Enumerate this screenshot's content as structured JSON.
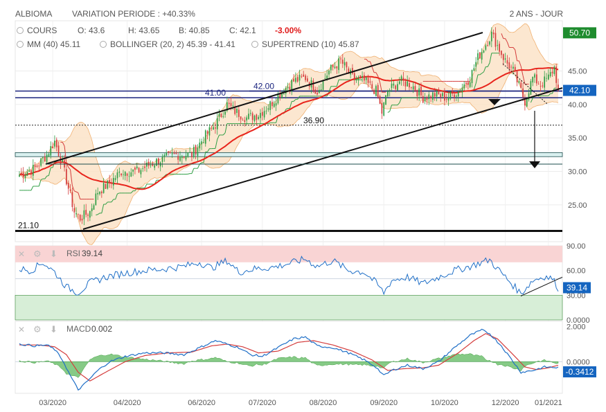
{
  "header": {
    "ticker": "ALBIOMA",
    "variation": "VARIATION PERIODE : +40.33%",
    "range": "2 ANS - JOUR"
  },
  "legend": {
    "cours_label": "COURS",
    "open": "O: 43.6",
    "high": "H: 43.65",
    "low": "B: 40.85",
    "close": "C: 42.1",
    "change": "-3.00%",
    "mm": "MM (40)",
    "mm_value": "45.11",
    "bollinger": "BOLLINGER (20, 2)",
    "bollinger_value": "45.39 - 41.41",
    "supertrend": "SUPERTREND (10)",
    "supertrend_value": "45.87"
  },
  "colors": {
    "up": "#2e9e44",
    "down": "#d43c3c",
    "mm": "#e8241c",
    "bollinger_fill": "#fbe3c8",
    "bollinger_line": "#f0b070",
    "supertrend_up": "#2e9e44",
    "supertrend_down": "#d43c3c",
    "hline": "#1a237e",
    "rsi": "#1f6fc7",
    "rsi_over": "#f9d4d4",
    "rsi_under": "#d7eed7",
    "macd": "#1f6fc7",
    "macd_signal": "#d43c3c",
    "hist": "#5db85d",
    "last_price_bg": "#1565c0",
    "high_tag_bg": "#1e8c2e"
  },
  "chart_data": [
    {
      "type": "candlestick",
      "x_ticks": [
        "03/2020",
        "04/2020",
        "06/2020",
        "07/2020",
        "08/2020",
        "09/2020",
        "10/2020",
        "12/2020",
        "01/2021"
      ],
      "y_ticks": [
        "25.00",
        "30.00",
        "35.00",
        "40.00",
        "45.00"
      ],
      "ylim": [
        19.5,
        52.5
      ],
      "anchors": [
        [
          0,
          29.5
        ],
        [
          8,
          30.5
        ],
        [
          14,
          32.5
        ],
        [
          18,
          34.5
        ],
        [
          22,
          31
        ],
        [
          25,
          27.5
        ],
        [
          28,
          24
        ],
        [
          31,
          23
        ],
        [
          36,
          24
        ],
        [
          40,
          27
        ],
        [
          45,
          28
        ],
        [
          52,
          30
        ],
        [
          60,
          30
        ],
        [
          70,
          31.5
        ],
        [
          80,
          32.5
        ],
        [
          88,
          32.5
        ],
        [
          94,
          35
        ],
        [
          100,
          37
        ],
        [
          106,
          40
        ],
        [
          110,
          39
        ],
        [
          116,
          38
        ],
        [
          122,
          38.5
        ],
        [
          128,
          40
        ],
        [
          134,
          42
        ],
        [
          140,
          43.5
        ],
        [
          146,
          44
        ],
        [
          152,
          42
        ],
        [
          158,
          45
        ],
        [
          164,
          46.5
        ],
        [
          170,
          44
        ],
        [
          176,
          43.5
        ],
        [
          182,
          42
        ],
        [
          185,
          38.8
        ],
        [
          188,
          42
        ],
        [
          194,
          43.5
        ],
        [
          200,
          43
        ],
        [
          206,
          41
        ],
        [
          212,
          41.5
        ],
        [
          218,
          41
        ],
        [
          224,
          42
        ],
        [
          230,
          44
        ],
        [
          234,
          47
        ],
        [
          238,
          49
        ],
        [
          241,
          50.5
        ],
        [
          244,
          48.8
        ],
        [
          248,
          46.5
        ],
        [
          252,
          45
        ],
        [
          256,
          42
        ],
        [
          258,
          40.5
        ],
        [
          262,
          44
        ],
        [
          266,
          43
        ],
        [
          270,
          44
        ],
        [
          273,
          45.5
        ],
        [
          275,
          42.1
        ]
      ],
      "last_price": "42.10",
      "high_tag": "50.70"
    },
    {
      "type": "line",
      "name": "RSI",
      "value_label": "39.14",
      "y_ticks": [
        "90.00",
        "60.00",
        "30.00",
        "0.0000"
      ],
      "ylim": [
        0,
        90
      ],
      "zones": {
        "overbought": 70,
        "oversold": 30
      },
      "anchors": [
        [
          0,
          62
        ],
        [
          6,
          60
        ],
        [
          12,
          70
        ],
        [
          18,
          58
        ],
        [
          24,
          40
        ],
        [
          30,
          33
        ],
        [
          36,
          45
        ],
        [
          44,
          52
        ],
        [
          54,
          57
        ],
        [
          64,
          60
        ],
        [
          74,
          62
        ],
        [
          84,
          65
        ],
        [
          92,
          70
        ],
        [
          98,
          63
        ],
        [
          106,
          72
        ],
        [
          112,
          58
        ],
        [
          120,
          62
        ],
        [
          130,
          64
        ],
        [
          140,
          70
        ],
        [
          146,
          74
        ],
        [
          152,
          65
        ],
        [
          160,
          72
        ],
        [
          168,
          60
        ],
        [
          176,
          58
        ],
        [
          182,
          45
        ],
        [
          186,
          33
        ],
        [
          190,
          48
        ],
        [
          198,
          52
        ],
        [
          206,
          44
        ],
        [
          214,
          52
        ],
        [
          222,
          60
        ],
        [
          230,
          65
        ],
        [
          236,
          70
        ],
        [
          240,
          73
        ],
        [
          246,
          57
        ],
        [
          252,
          42
        ],
        [
          256,
          32
        ],
        [
          262,
          48
        ],
        [
          268,
          53
        ],
        [
          272,
          50
        ],
        [
          275,
          39
        ]
      ]
    },
    {
      "type": "line",
      "name": "MACD",
      "value_label": "0.002",
      "last_tag": "-0.3412",
      "y_ticks": [
        "2.000",
        "0.0000"
      ],
      "ylim": [
        -1.8,
        2.3
      ],
      "macd_anchors": [
        [
          0,
          1.0
        ],
        [
          8,
          0.9
        ],
        [
          14,
          0.95
        ],
        [
          18,
          0.7
        ],
        [
          22,
          0.1
        ],
        [
          26,
          -0.8
        ],
        [
          30,
          -1.6
        ],
        [
          34,
          -1.2
        ],
        [
          40,
          -0.5
        ],
        [
          46,
          0.0
        ],
        [
          54,
          0.3
        ],
        [
          64,
          0.5
        ],
        [
          74,
          0.5
        ],
        [
          84,
          0.4
        ],
        [
          92,
          0.8
        ],
        [
          100,
          1.2
        ],
        [
          106,
          1.0
        ],
        [
          112,
          0.8
        ],
        [
          118,
          0.4
        ],
        [
          124,
          0.3
        ],
        [
          132,
          0.8
        ],
        [
          140,
          1.3
        ],
        [
          146,
          1.4
        ],
        [
          152,
          0.9
        ],
        [
          160,
          0.8
        ],
        [
          168,
          0.5
        ],
        [
          176,
          0.1
        ],
        [
          182,
          -0.3
        ],
        [
          186,
          -0.8
        ],
        [
          190,
          -0.5
        ],
        [
          198,
          -0.2
        ],
        [
          206,
          -0.4
        ],
        [
          214,
          0.0
        ],
        [
          222,
          0.8
        ],
        [
          230,
          1.5
        ],
        [
          236,
          1.8
        ],
        [
          240,
          1.6
        ],
        [
          246,
          0.9
        ],
        [
          252,
          0.0
        ],
        [
          256,
          -0.6
        ],
        [
          262,
          -0.5
        ],
        [
          268,
          -0.3
        ],
        [
          275,
          -0.34
        ]
      ],
      "signal_anchors": [
        [
          0,
          0.95
        ],
        [
          10,
          0.95
        ],
        [
          18,
          0.85
        ],
        [
          24,
          0.4
        ],
        [
          30,
          -0.6
        ],
        [
          36,
          -1.1
        ],
        [
          44,
          -0.6
        ],
        [
          54,
          0.0
        ],
        [
          64,
          0.35
        ],
        [
          76,
          0.5
        ],
        [
          88,
          0.55
        ],
        [
          98,
          0.9
        ],
        [
          106,
          1.0
        ],
        [
          114,
          0.85
        ],
        [
          122,
          0.5
        ],
        [
          132,
          0.6
        ],
        [
          142,
          1.1
        ],
        [
          150,
          1.2
        ],
        [
          160,
          0.95
        ],
        [
          170,
          0.6
        ],
        [
          180,
          0.1
        ],
        [
          188,
          -0.5
        ],
        [
          196,
          -0.4
        ],
        [
          206,
          -0.35
        ],
        [
          214,
          -0.2
        ],
        [
          224,
          0.5
        ],
        [
          232,
          1.2
        ],
        [
          238,
          1.6
        ],
        [
          244,
          1.3
        ],
        [
          252,
          0.4
        ],
        [
          258,
          -0.3
        ],
        [
          264,
          -0.45
        ],
        [
          270,
          -0.35
        ],
        [
          275,
          -0.2
        ]
      ]
    }
  ],
  "annotations": {
    "lvl_2110": "21.10",
    "lvl_3690": "36.90",
    "lvl_4100": "41.00",
    "lvl_4200": "42.00"
  }
}
